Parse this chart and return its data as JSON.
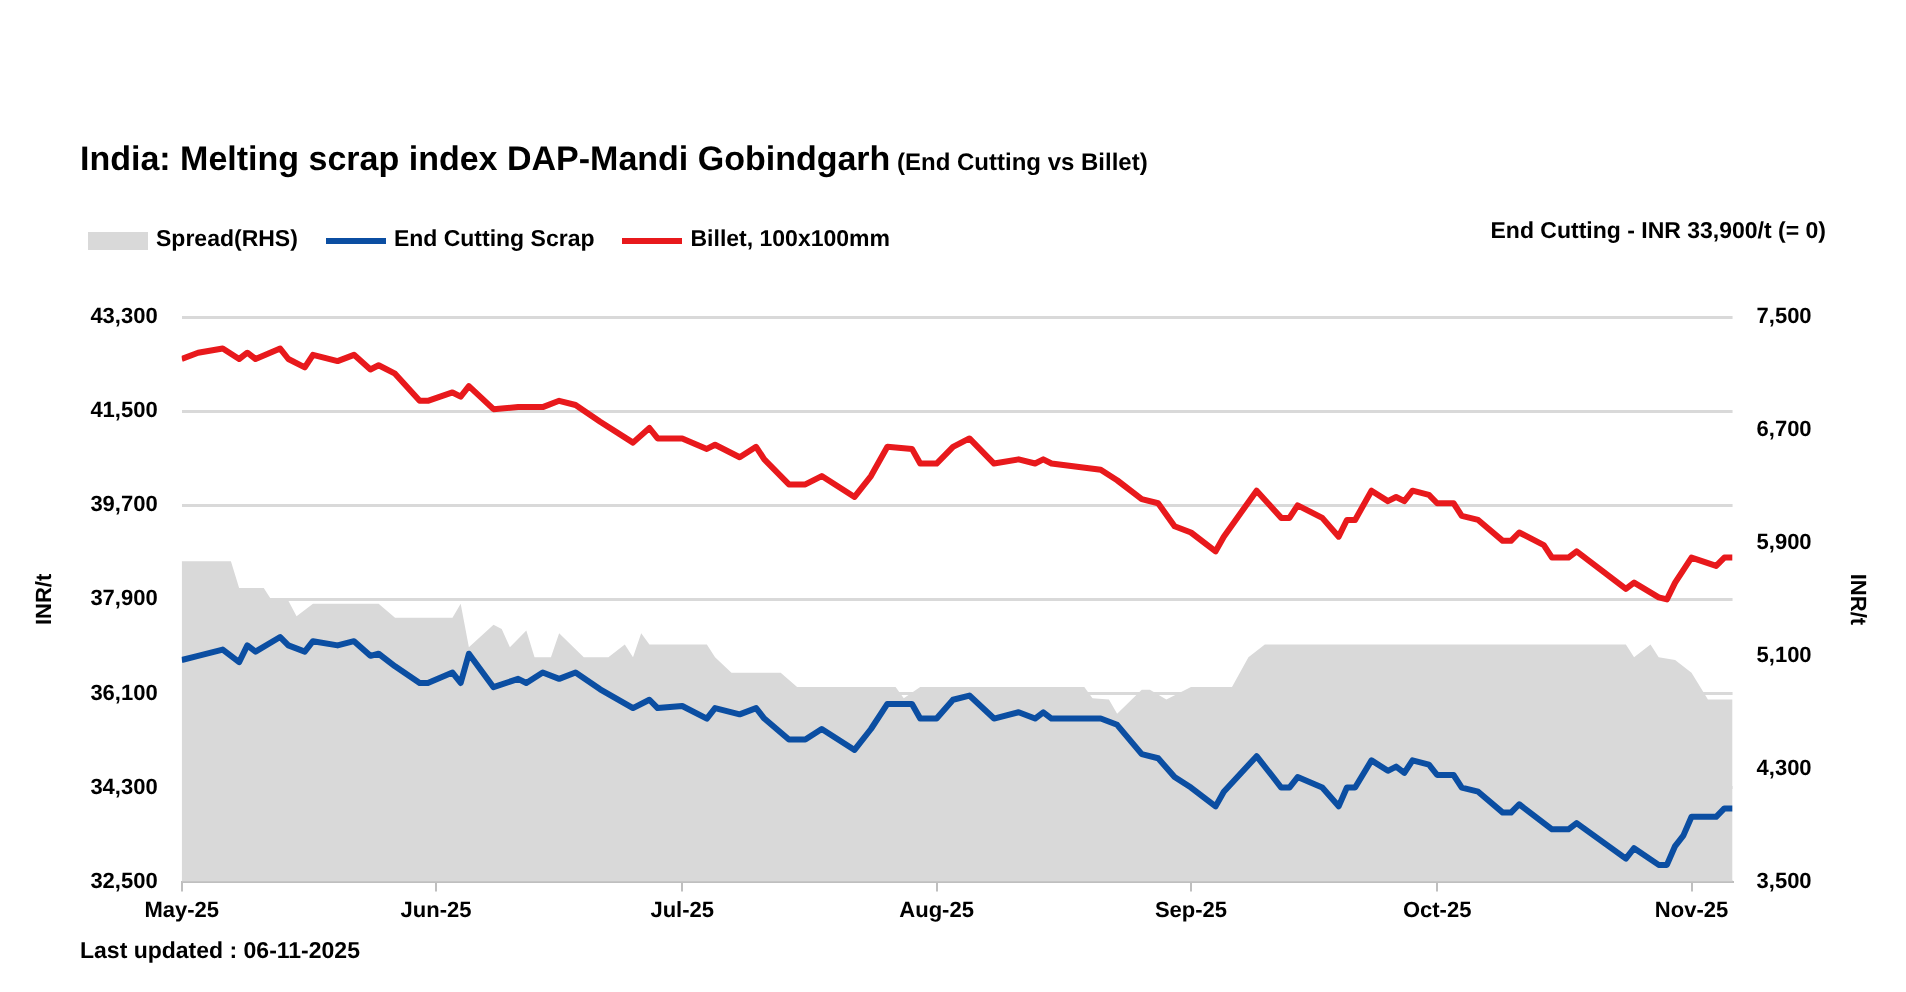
{
  "chart_data": {
    "type": "line",
    "title": "India: Melting scrap index DAP-Mandi Gobindgarh",
    "subtitle": "(End Cutting vs Billet)",
    "ylabel": "INR/t",
    "y2label": "INR/t",
    "annotations": [
      "End Cutting - INR 33,900/t (= 0)",
      "Last updated : 06-11-2025"
    ],
    "x": [
      "2025-05-01",
      "2025-05-03",
      "2025-05-06",
      "2025-05-08",
      "2025-05-09",
      "2025-05-10",
      "2025-05-13",
      "2025-05-14",
      "2025-05-16",
      "2025-05-17",
      "2025-05-20",
      "2025-05-22",
      "2025-05-24",
      "2025-05-25",
      "2025-05-27",
      "2025-05-30",
      "2025-05-31",
      "2025-06-03",
      "2025-06-04",
      "2025-06-05",
      "2025-06-08",
      "2025-06-11",
      "2025-06-12",
      "2025-06-14",
      "2025-06-16",
      "2025-06-18",
      "2025-06-21",
      "2025-06-25",
      "2025-06-27",
      "2025-06-28",
      "2025-07-01",
      "2025-07-04",
      "2025-07-05",
      "2025-07-08",
      "2025-07-10",
      "2025-07-11",
      "2025-07-14",
      "2025-07-16",
      "2025-07-18",
      "2025-07-22",
      "2025-07-24",
      "2025-07-26",
      "2025-07-29",
      "2025-07-30",
      "2025-08-01",
      "2025-08-03",
      "2025-08-05",
      "2025-08-08",
      "2025-08-11",
      "2025-08-13",
      "2025-08-14",
      "2025-08-15",
      "2025-08-21",
      "2025-08-23",
      "2025-08-26",
      "2025-08-28",
      "2025-08-30",
      "2025-09-01",
      "2025-09-04",
      "2025-09-05",
      "2025-09-09",
      "2025-09-12",
      "2025-09-13",
      "2025-09-14",
      "2025-09-17",
      "2025-09-19",
      "2025-09-20",
      "2025-09-21",
      "2025-09-23",
      "2025-09-25",
      "2025-09-26",
      "2025-09-27",
      "2025-09-28",
      "2025-09-30",
      "2025-10-01",
      "2025-10-03",
      "2025-10-04",
      "2025-10-06",
      "2025-10-09",
      "2025-10-10",
      "2025-10-11",
      "2025-10-14",
      "2025-10-15",
      "2025-10-17",
      "2025-10-18",
      "2025-10-24",
      "2025-10-25",
      "2025-10-28",
      "2025-10-29",
      "2025-10-30",
      "2025-10-31",
      "2025-11-01",
      "2025-11-04",
      "2025-11-05",
      "2025-11-06"
    ],
    "series": [
      {
        "name": "Spread(RHS)",
        "type": "area",
        "axis": "y2",
        "color": "#d9d9d9",
        "x": [
          "2025-05-01",
          "2025-05-07",
          "2025-05-08",
          "2025-05-11",
          "2025-05-12",
          "2025-05-14",
          "2025-05-15",
          "2025-05-17",
          "2025-05-25",
          "2025-05-27",
          "2025-06-03",
          "2025-06-04",
          "2025-06-05",
          "2025-06-08",
          "2025-06-09",
          "2025-06-10",
          "2025-06-12",
          "2025-06-13",
          "2025-06-15",
          "2025-06-16",
          "2025-06-19",
          "2025-06-22",
          "2025-06-24",
          "2025-06-25",
          "2025-06-26",
          "2025-06-27",
          "2025-07-04",
          "2025-07-05",
          "2025-07-07",
          "2025-07-13",
          "2025-07-15",
          "2025-07-27",
          "2025-07-28",
          "2025-07-30",
          "2025-08-19",
          "2025-08-20",
          "2025-08-22",
          "2025-08-23",
          "2025-08-26",
          "2025-08-27",
          "2025-08-29",
          "2025-09-01",
          "2025-09-06",
          "2025-09-08",
          "2025-09-10",
          "2025-10-24",
          "2025-10-25",
          "2025-10-27",
          "2025-10-28",
          "2025-10-30",
          "2025-11-01",
          "2025-11-03",
          "2025-11-06"
        ],
        "values": [
          5770,
          5770,
          5580,
          5580,
          5490,
          5490,
          5380,
          5470,
          5470,
          5370,
          5370,
          5470,
          5160,
          5320,
          5290,
          5160,
          5280,
          5090,
          5090,
          5260,
          5090,
          5090,
          5180,
          5090,
          5260,
          5180,
          5180,
          5090,
          4980,
          4980,
          4880,
          4880,
          4800,
          4880,
          4880,
          4800,
          4790,
          4690,
          4860,
          4860,
          4790,
          4880,
          4880,
          5090,
          5180,
          5180,
          5090,
          5180,
          5090,
          5070,
          4980,
          4790,
          4790
        ]
      },
      {
        "name": "End Cutting Scrap",
        "type": "line",
        "color": "#0b4ea2",
        "values": [
          36740,
          36820,
          36940,
          36700,
          37020,
          36900,
          37180,
          37020,
          36900,
          37100,
          37020,
          37100,
          36820,
          36860,
          36620,
          36300,
          36300,
          36500,
          36300,
          36860,
          36220,
          36380,
          36300,
          36500,
          36380,
          36500,
          36180,
          35820,
          35980,
          35820,
          35860,
          35620,
          35820,
          35700,
          35820,
          35620,
          35220,
          35220,
          35420,
          35020,
          35420,
          35900,
          35900,
          35620,
          35620,
          35980,
          36060,
          35620,
          35740,
          35620,
          35740,
          35620,
          35620,
          35500,
          34940,
          34860,
          34500,
          34300,
          33940,
          34220,
          34900,
          34300,
          34300,
          34500,
          34300,
          33940,
          34300,
          34300,
          34820,
          34620,
          34700,
          34580,
          34820,
          34740,
          34540,
          34540,
          34300,
          34220,
          33820,
          33820,
          33980,
          33620,
          33500,
          33500,
          33620,
          32940,
          33140,
          32820,
          32820,
          33180,
          33380,
          33740,
          33740,
          33900,
          33900
        ]
      },
      {
        "name": "Billet, 100x100mm",
        "type": "line",
        "color": "#e8191c",
        "values": [
          42500,
          42620,
          42700,
          42500,
          42620,
          42500,
          42700,
          42500,
          42340,
          42580,
          42460,
          42580,
          42300,
          42380,
          42220,
          41700,
          41700,
          41860,
          41780,
          41980,
          41540,
          41580,
          41580,
          41580,
          41700,
          41620,
          41300,
          40900,
          41180,
          40980,
          40980,
          40780,
          40860,
          40620,
          40820,
          40580,
          40100,
          40100,
          40260,
          39860,
          40260,
          40820,
          40780,
          40500,
          40500,
          40820,
          40980,
          40500,
          40580,
          40500,
          40580,
          40500,
          40380,
          40180,
          39820,
          39740,
          39300,
          39180,
          38820,
          39100,
          39980,
          39460,
          39460,
          39700,
          39460,
          39100,
          39420,
          39420,
          39980,
          39780,
          39860,
          39780,
          39980,
          39900,
          39740,
          39740,
          39500,
          39420,
          39020,
          39020,
          39180,
          38940,
          38700,
          38700,
          38820,
          38100,
          38220,
          37940,
          37900,
          38220,
          38460,
          38700,
          38540,
          38700,
          38700
        ]
      }
    ],
    "xlim": [
      "2025-05-01",
      "2025-11-06"
    ],
    "xticks": [
      {
        "value": "2025-05-01",
        "label": "May-25"
      },
      {
        "value": "2025-06-01",
        "label": "Jun-25"
      },
      {
        "value": "2025-07-01",
        "label": "Jul-25"
      },
      {
        "value": "2025-08-01",
        "label": "Aug-25"
      },
      {
        "value": "2025-09-01",
        "label": "Sep-25"
      },
      {
        "value": "2025-10-01",
        "label": "Oct-25"
      },
      {
        "value": "2025-11-01",
        "label": "Nov-25"
      }
    ],
    "ylim": [
      32500,
      43300
    ],
    "yticks": [
      {
        "value": 32500,
        "label": "32,500"
      },
      {
        "value": 34300,
        "label": "34,300"
      },
      {
        "value": 36100,
        "label": "36,100"
      },
      {
        "value": 37900,
        "label": "37,900"
      },
      {
        "value": 39700,
        "label": "39,700"
      },
      {
        "value": 41500,
        "label": "41,500"
      },
      {
        "value": 43300,
        "label": "43,300"
      }
    ],
    "y2lim": [
      3500,
      7500
    ],
    "y2ticks": [
      {
        "value": 3500,
        "label": "3,500"
      },
      {
        "value": 4300,
        "label": "4,300"
      },
      {
        "value": 5100,
        "label": "5,100"
      },
      {
        "value": 5900,
        "label": "5,900"
      },
      {
        "value": 6700,
        "label": "6,700"
      },
      {
        "value": 7500,
        "label": "7,500"
      }
    ],
    "grid": "y",
    "legend": "top left",
    "marker": "none",
    "line_style": "solid"
  }
}
